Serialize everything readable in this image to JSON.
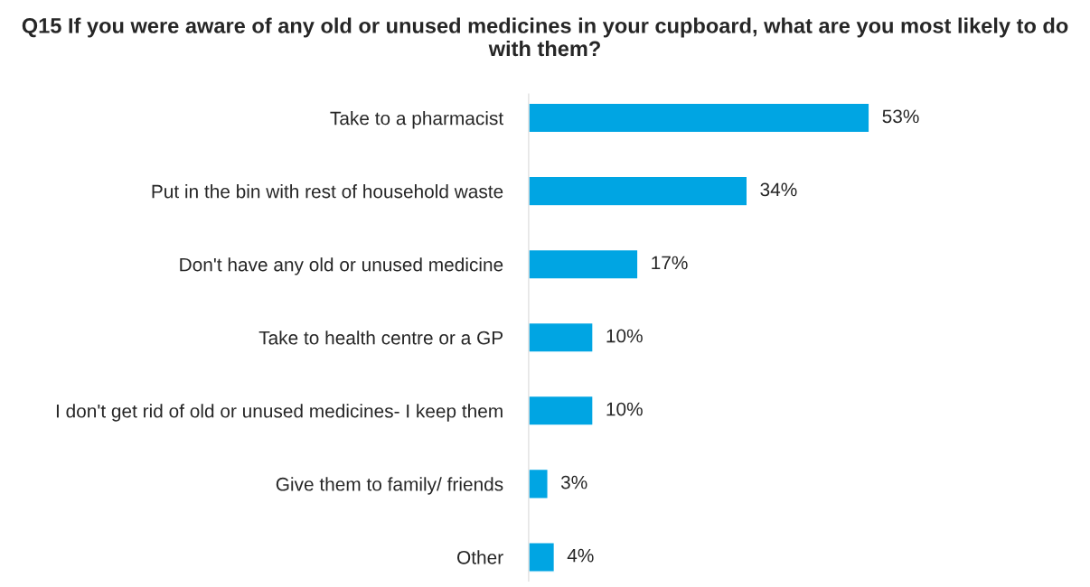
{
  "chart_data": {
    "type": "bar",
    "orientation": "horizontal",
    "title": "Q15 If you were aware of any old or unused medicines in your cupboard, what are you most likely to do with them?",
    "categories": [
      "Take to a pharmacist",
      "Put in the bin with rest of household waste",
      "Don't have any old or unused medicine",
      "Take to health centre or a GP",
      "I don't get rid of old or unused medicines- I keep them",
      "Give them to family/ friends",
      "Other"
    ],
    "values": [
      53,
      34,
      17,
      10,
      10,
      3,
      4
    ],
    "value_labels": [
      "53%",
      "34%",
      "17%",
      "10%",
      "10%",
      "3%",
      "4%"
    ],
    "color": "#00a5e3",
    "grid": false,
    "legend": false,
    "tick_labels": "y"
  }
}
